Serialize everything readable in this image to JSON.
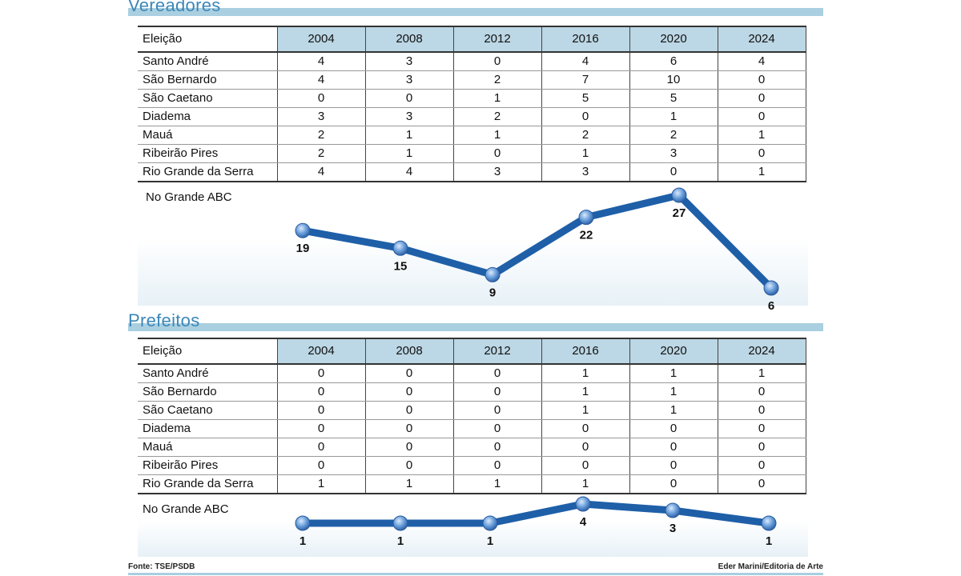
{
  "sections": [
    {
      "title": "Vereadores",
      "header_label": "Eleição",
      "years": [
        "2004",
        "2008",
        "2012",
        "2016",
        "2020",
        "2024"
      ],
      "rows": [
        {
          "name": "Santo André",
          "values": [
            "4",
            "3",
            "0",
            "4",
            "6",
            "4"
          ]
        },
        {
          "name": "São Bernardo",
          "values": [
            "4",
            "3",
            "2",
            "7",
            "10",
            "0"
          ]
        },
        {
          "name": "São Caetano",
          "values": [
            "0",
            "0",
            "1",
            "5",
            "5",
            "0"
          ]
        },
        {
          "name": "Diadema",
          "values": [
            "3",
            "3",
            "2",
            "0",
            "1",
            "0"
          ]
        },
        {
          "name": "Mauá",
          "values": [
            "2",
            "1",
            "1",
            "2",
            "2",
            "1"
          ]
        },
        {
          "name": "Ribeirão Pires",
          "values": [
            "2",
            "1",
            "0",
            "1",
            "3",
            "0"
          ]
        },
        {
          "name": "Rio Grande da Serra",
          "values": [
            "4",
            "4",
            "3",
            "3",
            "0",
            "1"
          ]
        }
      ],
      "total_label": "No Grande ABC"
    },
    {
      "title": "Prefeitos",
      "header_label": "Eleição",
      "years": [
        "2004",
        "2008",
        "2012",
        "2016",
        "2020",
        "2024"
      ],
      "rows": [
        {
          "name": "Santo André",
          "values": [
            "0",
            "0",
            "0",
            "1",
            "1",
            "1"
          ]
        },
        {
          "name": "São Bernardo",
          "values": [
            "0",
            "0",
            "0",
            "1",
            "1",
            "0"
          ]
        },
        {
          "name": "São Caetano",
          "values": [
            "0",
            "0",
            "0",
            "1",
            "1",
            "0"
          ]
        },
        {
          "name": "Diadema",
          "values": [
            "0",
            "0",
            "0",
            "0",
            "0",
            "0"
          ]
        },
        {
          "name": "Mauá",
          "values": [
            "0",
            "0",
            "0",
            "0",
            "0",
            "0"
          ]
        },
        {
          "name": "Ribeirão Pires",
          "values": [
            "0",
            "0",
            "0",
            "0",
            "0",
            "0"
          ]
        },
        {
          "name": "Rio Grande da Serra",
          "values": [
            "1",
            "1",
            "1",
            "1",
            "0",
            "0"
          ]
        }
      ],
      "total_label": "No Grande ABC"
    }
  ],
  "chart_data": [
    {
      "type": "line",
      "title": "Vereadores",
      "x": [
        "2004",
        "2008",
        "2012",
        "2016",
        "2020",
        "2024"
      ],
      "series": [
        {
          "name": "No Grande ABC",
          "values": [
            19,
            15,
            9,
            22,
            27,
            6
          ]
        }
      ]
    },
    {
      "type": "line",
      "title": "Prefeitos",
      "x": [
        "2004",
        "2008",
        "2012",
        "2016",
        "2020",
        "2024"
      ],
      "series": [
        {
          "name": "No Grande ABC",
          "values": [
            1,
            1,
            1,
            4,
            3,
            1
          ]
        }
      ]
    }
  ],
  "colors": {
    "line": "#1e5fa8",
    "marker": "#6a9fdb",
    "title": "#3b87b8",
    "header_fill": "#bcd7e5",
    "rule": "#a9cfe0"
  },
  "footer": {
    "source": "Fonte: TSE/PSDB",
    "credit": "Eder Marini/Editoria de Arte"
  }
}
